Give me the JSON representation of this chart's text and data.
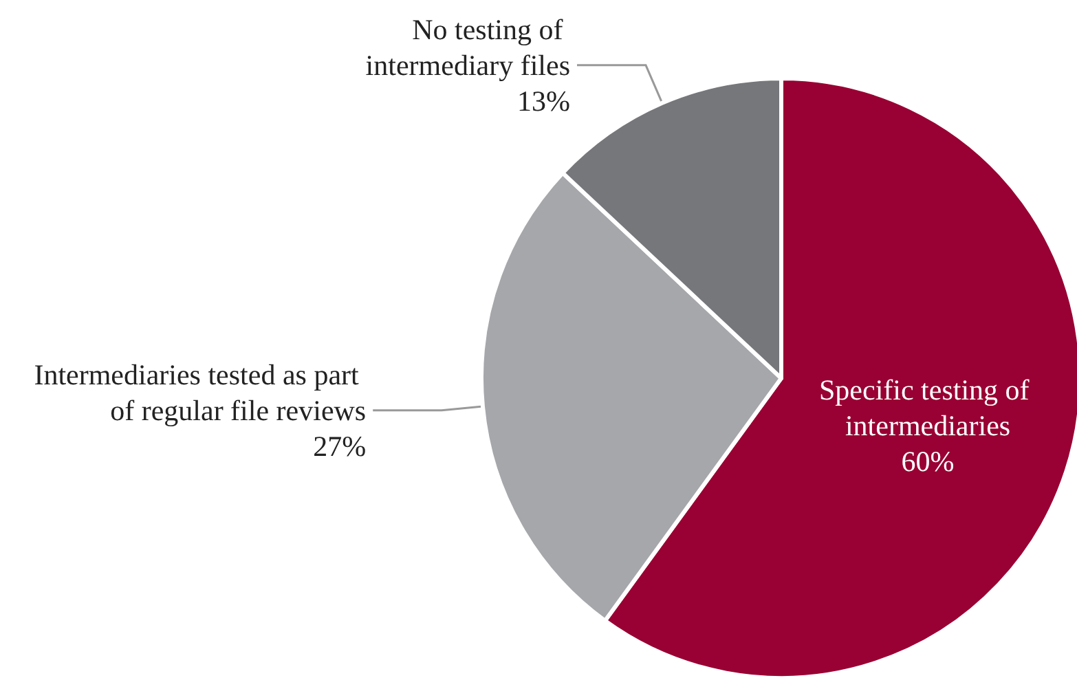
{
  "chart_data": {
    "type": "pie",
    "categories": [
      "Specific testing of intermediaries",
      "Intermediaries tested as part of regular file reviews",
      "No testing of intermediary files"
    ],
    "values": [
      60,
      27,
      13
    ],
    "value_labels": [
      "60%",
      "27%",
      "13%"
    ],
    "colors": [
      "#990033",
      "#a6a7ab",
      "#76777b"
    ],
    "legend": false
  }
}
